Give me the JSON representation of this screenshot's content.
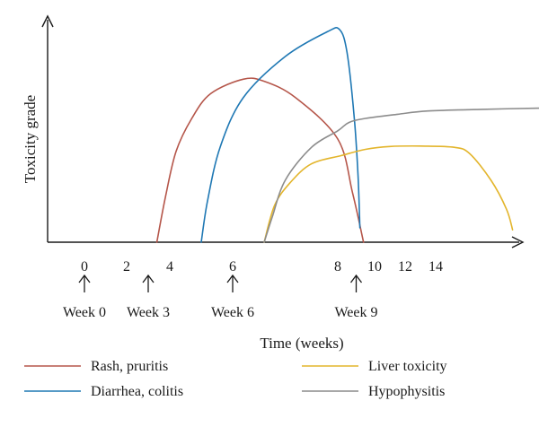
{
  "chart_data": {
    "type": "line",
    "xlabel": "Time (weeks)",
    "ylabel": "Toxicity grade",
    "x_ticks": [
      "0",
      "2",
      "4",
      "6",
      "8",
      "10",
      "12",
      "14"
    ],
    "annotations": [
      {
        "label": "Week 0",
        "x": 0
      },
      {
        "label": "Week 3",
        "x": 3
      },
      {
        "label": "Week 6",
        "x": 6
      },
      {
        "label": "Week 9",
        "x": 9
      }
    ],
    "series": [
      {
        "name": "Rash, pruritis",
        "color": "#b5564a",
        "points": [
          [
            3.4,
            0
          ],
          [
            3.8,
            1.1
          ],
          [
            4.2,
            2.2
          ],
          [
            4.7,
            3.0
          ],
          [
            5.3,
            3.6
          ],
          [
            6.2,
            3.95
          ],
          [
            6.6,
            3.9
          ],
          [
            7.2,
            3.5
          ],
          [
            8.0,
            2.5
          ],
          [
            8.8,
            1.2
          ],
          [
            9.4,
            0
          ]
        ]
      },
      {
        "name": "Diarrhea, colitis",
        "color": "#1f78b4",
        "points": [
          [
            5.0,
            0
          ],
          [
            5.2,
            1.0
          ],
          [
            5.6,
            2.3
          ],
          [
            6.2,
            3.5
          ],
          [
            7.0,
            4.5
          ],
          [
            7.8,
            5.1
          ],
          [
            8.1,
            5.15
          ],
          [
            8.5,
            4.6
          ],
          [
            8.9,
            3.0
          ],
          [
            9.1,
            1.6
          ],
          [
            9.2,
            0.35
          ]
        ]
      },
      {
        "name": "Liver toxicity",
        "color": "#e3b52c",
        "points": [
          [
            6.6,
            0
          ],
          [
            6.8,
            0.9
          ],
          [
            7.1,
            1.45
          ],
          [
            7.5,
            1.9
          ],
          [
            8.2,
            2.1
          ],
          [
            9.5,
            2.25
          ],
          [
            11.0,
            2.32
          ],
          [
            13.0,
            2.33
          ],
          [
            14.6,
            2.3
          ],
          [
            15.1,
            2.15
          ],
          [
            15.8,
            1.5
          ],
          [
            16.3,
            0.8
          ],
          [
            16.5,
            0.3
          ]
        ]
      },
      {
        "name": "Hypophysitis",
        "color": "#8c8c8c",
        "points": [
          [
            6.6,
            0
          ],
          [
            6.75,
            0.6
          ],
          [
            7.0,
            1.5
          ],
          [
            7.5,
            2.3
          ],
          [
            8.0,
            2.7
          ],
          [
            8.6,
            2.9
          ],
          [
            9.5,
            3.0
          ],
          [
            11.5,
            3.1
          ],
          [
            13.5,
            3.18
          ],
          [
            15.5,
            3.22
          ],
          [
            17.5,
            3.25
          ]
        ]
      }
    ],
    "legend_position": "bottom",
    "grid": false
  }
}
